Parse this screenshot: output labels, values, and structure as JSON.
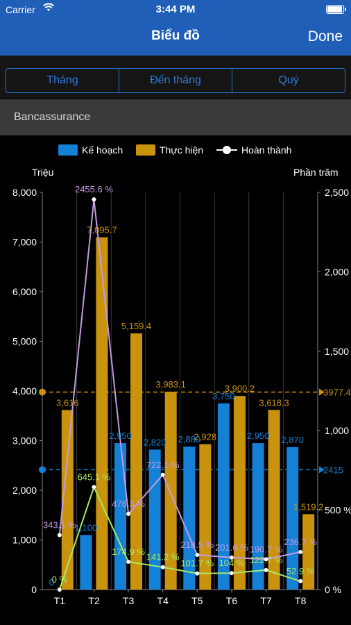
{
  "status": {
    "carrier": "Carrier",
    "time": "3:44 PM"
  },
  "nav": {
    "title": "Biểu đồ",
    "done": "Done"
  },
  "tabs": [
    "Tháng",
    "Đến tháng",
    "Quý"
  ],
  "section": {
    "title": "Bancassurance"
  },
  "colors": {
    "plan": "#1480d6",
    "actual": "#c9930e",
    "pct": "#c49ae6",
    "pct2": "#a6eb6a",
    "header": "#1f5fb8"
  },
  "chart_data": {
    "type": "bar",
    "categories": [
      "T1",
      "T2",
      "T3",
      "T4",
      "T5",
      "T6",
      "T7",
      "T8"
    ],
    "series": [
      {
        "name": "Kế hoạch",
        "values": [
          0,
          1100,
          2950,
          2820,
          2880,
          3750,
          2950,
          2870
        ],
        "labels": [
          "0",
          "1,100",
          "2,950",
          "2,820",
          "2,880",
          "3,750",
          "2,950",
          "2,870"
        ]
      },
      {
        "name": "Thực hiện",
        "values": [
          3616,
          7095.7,
          5159.4,
          3983.1,
          2928,
          3900.2,
          3618.3,
          1519.2
        ],
        "labels": [
          "3,616",
          "7,095.7",
          "5,159.4",
          "3,983.1",
          "2,928",
          "3,900.2",
          "3,618.3",
          "1,519.2"
        ]
      }
    ],
    "pct_series": {
      "name": "Hoàn thành",
      "values": [
        343.1,
        2455.6,
        476.3,
        722.1,
        218.5,
        201.6,
        190.7,
        236.7
      ],
      "labels": [
        "343.1 %",
        "2455.6 %",
        "476.3 %",
        "722.1 %",
        "218.5 %",
        "201.6 %",
        "190.7 %",
        "236.7 %"
      ]
    },
    "pct_series2": {
      "values": [
        0,
        645.1,
        174.9,
        141.2,
        101.7,
        104,
        122.7,
        52.9
      ],
      "labels": [
        "0 %",
        "645.1 %",
        "174.9 %",
        "141.2 %",
        "101.7 %",
        "104 %",
        "122.7 %",
        "52.9 %"
      ]
    },
    "y_left": {
      "label": "Triệu",
      "ticks": [
        "0",
        "1,000",
        "2,000",
        "3,000",
        "4,000",
        "5,000",
        "6,000",
        "7,000",
        "8,000"
      ],
      "ylim": [
        0,
        8000
      ]
    },
    "y_right": {
      "label": "Phần trăm",
      "ticks": [
        "0 %",
        "500 %",
        "1,000",
        "1,500",
        "2,000",
        "2,500"
      ],
      "ylim": [
        0,
        2500
      ]
    },
    "reference_lines": [
      {
        "value": 3977.4,
        "label": "3977.4",
        "color": "#c9930e"
      },
      {
        "value": 2415,
        "label": "2415",
        "color": "#1480d6"
      }
    ],
    "legend": "top"
  }
}
